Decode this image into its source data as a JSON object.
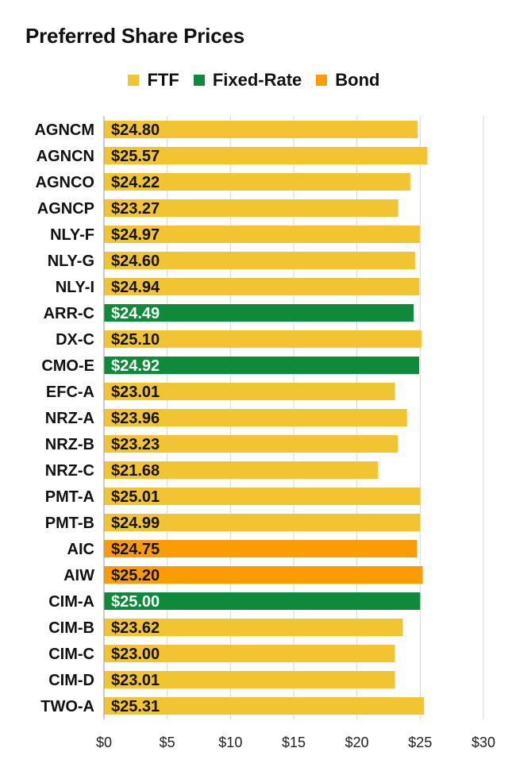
{
  "chart_data": {
    "type": "bar",
    "orientation": "horizontal",
    "title": "Preferred Share Prices",
    "legend_position": "top-center",
    "grid": true,
    "xlim": [
      0,
      30
    ],
    "xticks": [
      0,
      5,
      10,
      15,
      20,
      25,
      30
    ],
    "xtick_labels": [
      "$0",
      "$5",
      "$10",
      "$15",
      "$20",
      "$25",
      "$30"
    ],
    "legend": [
      {
        "name": "FTF",
        "color": "#f2c431"
      },
      {
        "name": "Fixed-Rate",
        "color": "#0f8a3b"
      },
      {
        "name": "Bond",
        "color": "#fb9c04"
      }
    ],
    "categories": [
      "AGNCM",
      "AGNCN",
      "AGNCO",
      "AGNCP",
      "NLY-F",
      "NLY-G",
      "NLY-I",
      "ARR-C",
      "DX-C",
      "CMO-E",
      "EFC-A",
      "NRZ-A",
      "NRZ-B",
      "NRZ-C",
      "PMT-A",
      "PMT-B",
      "AIC",
      "AIW",
      "CIM-A",
      "CIM-B",
      "CIM-C",
      "CIM-D",
      "TWO-A"
    ],
    "values": [
      24.8,
      25.57,
      24.22,
      23.27,
      24.97,
      24.6,
      24.94,
      24.49,
      25.1,
      24.92,
      23.01,
      23.96,
      23.23,
      21.68,
      25.01,
      24.99,
      24.75,
      25.2,
      25.0,
      23.62,
      23.0,
      23.01,
      25.31
    ],
    "value_labels": [
      "$24.80",
      "$25.57",
      "$24.22",
      "$23.27",
      "$24.97",
      "$24.60",
      "$24.94",
      "$24.49",
      "$25.10",
      "$24.92",
      "$23.01",
      "$23.96",
      "$23.23",
      "$21.68",
      "$25.01",
      "$24.99",
      "$24.75",
      "$25.20",
      "$25.00",
      "$23.62",
      "$23.00",
      "$23.01",
      "$25.31"
    ],
    "groups": [
      "FTF",
      "FTF",
      "FTF",
      "FTF",
      "FTF",
      "FTF",
      "FTF",
      "Fixed-Rate",
      "FTF",
      "Fixed-Rate",
      "FTF",
      "FTF",
      "FTF",
      "FTF",
      "FTF",
      "FTF",
      "Bond",
      "Bond",
      "Fixed-Rate",
      "FTF",
      "FTF",
      "FTF",
      "FTF"
    ]
  }
}
